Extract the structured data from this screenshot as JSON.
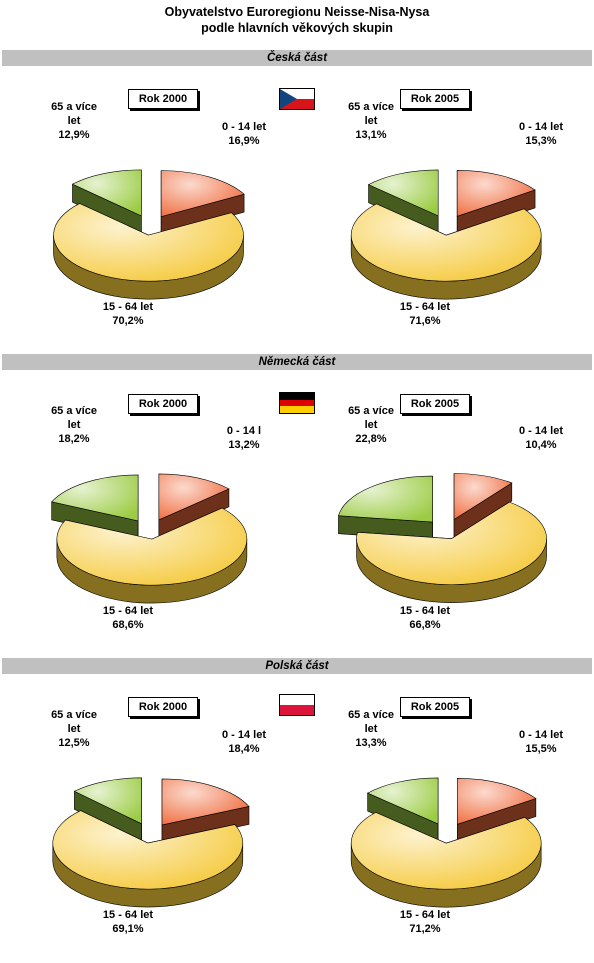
{
  "title_line1": "Obyvatelstvo Euroregionu Neisse-Nisa-Nysa",
  "title_line2": "podle hlavních věkových skupin",
  "sections": [
    {
      "label": "Česká část",
      "flag_icon": "czech-flag-icon"
    },
    {
      "label": "Německá část",
      "flag_icon": "german-flag-icon"
    },
    {
      "label": "Polská část",
      "flag_icon": "polish-flag-icon"
    }
  ],
  "colors": {
    "age_0_14": "#f06a3c",
    "age_15_64": "#f5c93a",
    "age_65_plus": "#9ccc45",
    "section_bar": "#c0c0c0"
  },
  "chart_data": [
    {
      "type": "pie",
      "section": "Česká část",
      "title": "Rok 2000",
      "categories": [
        "0 - 14 let",
        "15 - 64 let",
        "65 a více let"
      ],
      "values": [
        16.9,
        70.2,
        12.9
      ],
      "labels": {
        "a": [
          "0 - 14 let",
          "16,9%"
        ],
        "b": [
          "15 - 64 let",
          "70,2%"
        ],
        "c": [
          "65 a více",
          "let",
          "12,9%"
        ]
      }
    },
    {
      "type": "pie",
      "section": "Česká část",
      "title": "Rok 2005",
      "categories": [
        "0 - 14 let",
        "15 - 64 let",
        "65 a více let"
      ],
      "values": [
        15.3,
        71.6,
        13.1
      ],
      "labels": {
        "a": [
          "0 - 14 let",
          "15,3%"
        ],
        "b": [
          "15 - 64 let",
          "71,6%"
        ],
        "c": [
          "65 a více",
          "let",
          "13,1%"
        ]
      }
    },
    {
      "type": "pie",
      "section": "Německá část",
      "title": "Rok 2000",
      "categories": [
        "0 - 14 let",
        "15 - 64 let",
        "65 a více let"
      ],
      "values": [
        13.2,
        68.6,
        18.2
      ],
      "labels": {
        "a": [
          "0 - 14 l",
          "13,2%"
        ],
        "b": [
          "15 - 64 let",
          "68,6%"
        ],
        "c": [
          "65 a více",
          "let",
          "18,2%"
        ]
      }
    },
    {
      "type": "pie",
      "section": "Německá část",
      "title": "Rok 2005",
      "categories": [
        "0 - 14 let",
        "15 - 64 let",
        "65 a více let"
      ],
      "values": [
        10.4,
        66.8,
        22.8
      ],
      "labels": {
        "a": [
          "0 - 14 let",
          "10,4%"
        ],
        "b": [
          "15 - 64 let",
          "66,8%"
        ],
        "c": [
          "65 a více",
          "let",
          "22,8%"
        ]
      }
    },
    {
      "type": "pie",
      "section": "Polská část",
      "title": "Rok 2000",
      "categories": [
        "0 - 14 let",
        "15 - 64 let",
        "65 a více let"
      ],
      "values": [
        18.4,
        69.1,
        12.5
      ],
      "labels": {
        "a": [
          "0 - 14 let",
          "18,4%"
        ],
        "b": [
          "15 - 64 let",
          "69,1%"
        ],
        "c": [
          "65 a více",
          "let",
          "12,5%"
        ]
      }
    },
    {
      "type": "pie",
      "section": "Polská část",
      "title": "Rok 2005",
      "categories": [
        "0 - 14 let",
        "15 - 64 let",
        "65 a více let"
      ],
      "values": [
        15.5,
        71.2,
        13.3
      ],
      "labels": {
        "a": [
          "0 - 14 let",
          "15,5%"
        ],
        "b": [
          "15 - 64 let",
          "71,2%"
        ],
        "c": [
          "65 a více",
          "let",
          "13,3%"
        ]
      }
    }
  ]
}
